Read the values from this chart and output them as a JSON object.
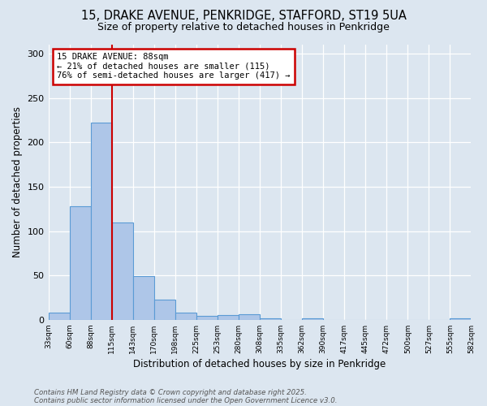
{
  "title_line1": "15, DRAKE AVENUE, PENKRIDGE, STAFFORD, ST19 5UA",
  "title_line2": "Size of property relative to detached houses in Penkridge",
  "xlabel": "Distribution of detached houses by size in Penkridge",
  "ylabel": "Number of detached properties",
  "tick_labels": [
    "33sqm",
    "60sqm",
    "88sqm",
    "115sqm",
    "143sqm",
    "170sqm",
    "198sqm",
    "225sqm",
    "253sqm",
    "280sqm",
    "308sqm",
    "335sqm",
    "362sqm",
    "390sqm",
    "417sqm",
    "445sqm",
    "472sqm",
    "500sqm",
    "527sqm",
    "555sqm",
    "582sqm"
  ],
  "values": [
    8,
    128,
    222,
    110,
    49,
    23,
    8,
    4,
    5,
    6,
    2,
    0,
    2,
    0,
    0,
    0,
    0,
    0,
    0,
    2
  ],
  "bar_color": "#aec6e8",
  "bar_edge_color": "#5b9bd5",
  "red_line_bin_index": 2,
  "annotation_text": "15 DRAKE AVENUE: 88sqm\n← 21% of detached houses are smaller (115)\n76% of semi-detached houses are larger (417) →",
  "annotation_box_facecolor": "#ffffff",
  "annotation_box_edgecolor": "#cc0000",
  "footer_line1": "Contains HM Land Registry data © Crown copyright and database right 2025.",
  "footer_line2": "Contains public sector information licensed under the Open Government Licence v3.0.",
  "bg_color": "#dce6f0",
  "ylim": [
    0,
    310
  ],
  "yticks": [
    0,
    50,
    100,
    150,
    200,
    250,
    300
  ]
}
